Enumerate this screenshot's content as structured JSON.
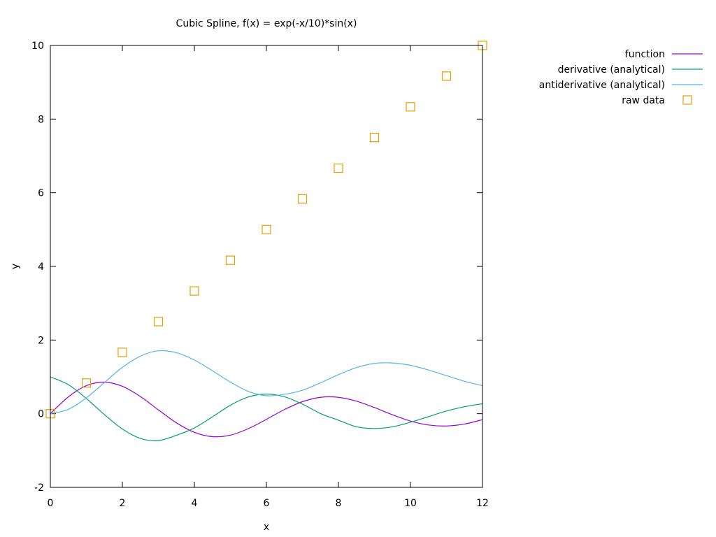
{
  "chart_data": {
    "type": "line",
    "title": "Cubic Spline, f(x) = exp(-x/10)*sin(x)",
    "xlabel": "x",
    "ylabel": "y",
    "xlim": [
      0,
      12
    ],
    "ylim": [
      -2,
      10
    ],
    "xticks": [
      0,
      2,
      4,
      6,
      8,
      10,
      12
    ],
    "yticks": [
      -2,
      0,
      2,
      4,
      6,
      8,
      10
    ],
    "grid": false,
    "legend_position": "outside-top-right",
    "series": [
      {
        "name": "function",
        "style": "line",
        "color": "#9400d3",
        "x": [
          0,
          0.5,
          1,
          1.5,
          2,
          2.5,
          3,
          3.5,
          4,
          4.5,
          5,
          5.5,
          6,
          6.5,
          7,
          7.5,
          8,
          8.5,
          9,
          9.5,
          10,
          10.5,
          11,
          11.5,
          12
        ],
        "y": [
          0,
          0.456,
          0.761,
          0.858,
          0.744,
          0.466,
          0.105,
          -0.247,
          -0.507,
          -0.624,
          -0.582,
          -0.405,
          -0.153,
          0.112,
          0.326,
          0.445,
          0.445,
          0.341,
          0.167,
          -0.029,
          -0.2,
          -0.307,
          -0.333,
          -0.28,
          -0.162
        ]
      },
      {
        "name": "derivative (analytical)",
        "style": "line",
        "color": "#009e73",
        "x": [
          0,
          0.5,
          1,
          1.5,
          2,
          2.5,
          3,
          3.5,
          4,
          4.5,
          5,
          5.5,
          6,
          6.5,
          7,
          7.5,
          8,
          8.5,
          9,
          9.5,
          10,
          10.5,
          11,
          11.5,
          12
        ],
        "y": [
          1,
          0.789,
          0.413,
          -0.022,
          -0.415,
          -0.671,
          -0.728,
          -0.586,
          -0.387,
          -0.086,
          0.23,
          0.455,
          0.533,
          0.46,
          0.261,
          0.005,
          -0.175,
          -0.354,
          -0.401,
          -0.357,
          -0.233,
          -0.08,
          0.073,
          0.19,
          0.27
        ]
      },
      {
        "name": "antiderivative (analytical)",
        "style": "line",
        "color": "#56b4e9",
        "x": [
          0,
          0.5,
          1,
          1.5,
          2,
          2.5,
          3,
          3.5,
          4,
          4.5,
          5,
          5.5,
          6,
          6.5,
          7,
          7.5,
          8,
          8.5,
          9,
          9.5,
          10,
          10.5,
          11,
          11.5,
          12
        ],
        "y": [
          0,
          0.118,
          0.43,
          0.845,
          1.258,
          1.562,
          1.708,
          1.656,
          1.458,
          1.167,
          0.859,
          0.605,
          0.488,
          0.526,
          0.638,
          0.837,
          1.061,
          1.252,
          1.366,
          1.378,
          1.313,
          1.186,
          1.034,
          0.88,
          0.762
        ]
      },
      {
        "name": "raw data",
        "style": "points",
        "marker": "open-square",
        "color": "#e69f00",
        "x": [
          0,
          1,
          2,
          3,
          4,
          5,
          6,
          7,
          8,
          9,
          10,
          11,
          12
        ],
        "y": [
          0,
          0.833,
          1.667,
          2.5,
          3.333,
          4.167,
          5,
          5.833,
          6.667,
          7.5,
          8.333,
          9.167,
          10
        ]
      }
    ]
  }
}
